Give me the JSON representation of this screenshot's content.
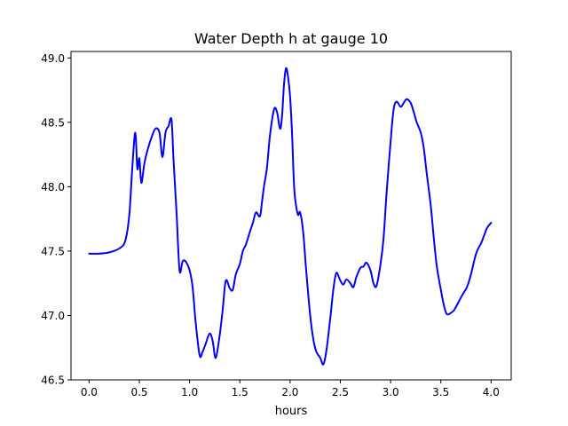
{
  "chart_data": {
    "type": "line",
    "title": "Water Depth h at gauge 10",
    "xlabel": "hours",
    "ylabel": "",
    "xlim": [
      -0.18,
      4.2
    ],
    "ylim": [
      46.5,
      49.05
    ],
    "xticks": [
      0.0,
      0.5,
      1.0,
      1.5,
      2.0,
      2.5,
      3.0,
      3.5,
      4.0
    ],
    "xtick_labels": [
      "0.0",
      "0.5",
      "1.0",
      "1.5",
      "2.0",
      "2.5",
      "3.0",
      "3.5",
      "4.0"
    ],
    "yticks": [
      46.5,
      47.0,
      47.5,
      48.0,
      48.5,
      49.0
    ],
    "ytick_labels": [
      "46.5",
      "47.0",
      "47.5",
      "48.0",
      "48.5",
      "49.0"
    ],
    "grid": false,
    "legend": "none",
    "series": [
      {
        "color": "#0000ff",
        "x": [
          0.0,
          0.1,
          0.2,
          0.3,
          0.36,
          0.4,
          0.43,
          0.46,
          0.48,
          0.5,
          0.52,
          0.55,
          0.58,
          0.62,
          0.66,
          0.7,
          0.73,
          0.76,
          0.79,
          0.82,
          0.84,
          0.87,
          0.9,
          0.93,
          0.96,
          1.0,
          1.03,
          1.06,
          1.1,
          1.13,
          1.16,
          1.2,
          1.23,
          1.26,
          1.3,
          1.33,
          1.36,
          1.4,
          1.43,
          1.46,
          1.5,
          1.53,
          1.56,
          1.6,
          1.63,
          1.66,
          1.7,
          1.72,
          1.74,
          1.77,
          1.8,
          1.84,
          1.87,
          1.9,
          1.92,
          1.94,
          1.96,
          1.98,
          2.0,
          2.02,
          2.04,
          2.06,
          2.08,
          2.1,
          2.13,
          2.16,
          2.2,
          2.23,
          2.26,
          2.3,
          2.33,
          2.36,
          2.4,
          2.43,
          2.46,
          2.5,
          2.53,
          2.56,
          2.6,
          2.63,
          2.66,
          2.7,
          2.73,
          2.76,
          2.8,
          2.83,
          2.86,
          2.9,
          2.93,
          2.96,
          3.0,
          3.03,
          3.06,
          3.1,
          3.13,
          3.16,
          3.2,
          3.23,
          3.26,
          3.3,
          3.33,
          3.36,
          3.4,
          3.43,
          3.46,
          3.5,
          3.53,
          3.56,
          3.6,
          3.63,
          3.66,
          3.7,
          3.73,
          3.76,
          3.8,
          3.83,
          3.86,
          3.9,
          3.93,
          3.96,
          4.0
        ],
        "values": [
          47.48,
          47.48,
          47.49,
          47.52,
          47.58,
          47.78,
          48.15,
          48.42,
          48.14,
          48.22,
          48.03,
          48.18,
          48.28,
          48.38,
          48.45,
          48.42,
          48.23,
          48.42,
          48.47,
          48.52,
          48.21,
          47.8,
          47.35,
          47.42,
          47.42,
          47.35,
          47.22,
          46.95,
          46.69,
          46.72,
          46.78,
          46.86,
          46.8,
          46.67,
          46.85,
          47.05,
          47.27,
          47.21,
          47.2,
          47.32,
          47.4,
          47.5,
          47.55,
          47.65,
          47.72,
          47.8,
          47.77,
          47.88,
          48.0,
          48.15,
          48.4,
          48.6,
          48.58,
          48.45,
          48.55,
          48.8,
          48.92,
          48.85,
          48.7,
          48.4,
          48.0,
          47.85,
          47.78,
          47.8,
          47.65,
          47.35,
          47.0,
          46.82,
          46.72,
          46.67,
          46.62,
          46.72,
          46.98,
          47.2,
          47.33,
          47.27,
          47.24,
          47.28,
          47.25,
          47.22,
          47.3,
          47.37,
          47.38,
          47.41,
          47.35,
          47.25,
          47.23,
          47.4,
          47.6,
          47.95,
          48.35,
          48.6,
          48.66,
          48.62,
          48.65,
          48.68,
          48.65,
          48.58,
          48.5,
          48.42,
          48.3,
          48.1,
          47.85,
          47.6,
          47.38,
          47.2,
          47.08,
          47.01,
          47.02,
          47.04,
          47.08,
          47.14,
          47.18,
          47.22,
          47.32,
          47.42,
          47.5,
          47.56,
          47.62,
          47.68,
          47.72
        ]
      }
    ]
  }
}
